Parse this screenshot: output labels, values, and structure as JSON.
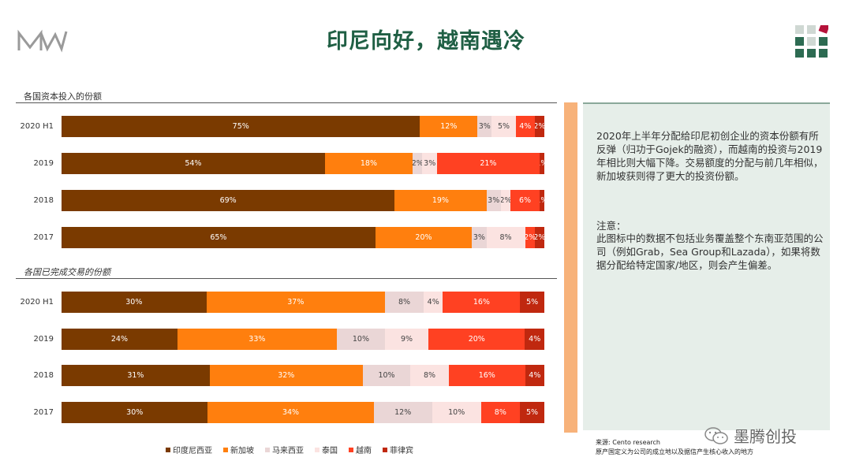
{
  "header": {
    "title": "印尼向好，越南遇冷"
  },
  "colors": {
    "indonesia": "#7a3a00",
    "singapore": "#ff7f0e",
    "malaysia": "#ead6d6",
    "thailand": "#fbe3e1",
    "vietnam": "#ff4122",
    "philippines": "#c0280f",
    "title_green": "#1f5f44"
  },
  "charts": {
    "capital_title": "各国资本投入的份额",
    "deals_title": "各国已完成交易的份额"
  },
  "chart_data": [
    {
      "type": "bar",
      "orientation": "horizontal-stacked",
      "title": "各国资本投入的份额",
      "categories": [
        "2020 H1",
        "2019",
        "2018",
        "2017"
      ],
      "series": [
        {
          "name": "印度尼西亚",
          "values": [
            75,
            54,
            69,
            65
          ],
          "labels": [
            "75%",
            "54%",
            "69%",
            "65%"
          ]
        },
        {
          "name": "新加坡",
          "values": [
            12,
            18,
            19,
            20
          ],
          "labels": [
            "12%",
            "18%",
            "19%",
            "20%"
          ]
        },
        {
          "name": "马来西亚",
          "values": [
            3,
            2,
            3,
            3
          ],
          "labels": [
            "3%",
            "2%",
            "3%",
            "3%"
          ]
        },
        {
          "name": "泰国",
          "values": [
            5,
            3,
            2,
            8
          ],
          "labels": [
            "5%",
            "3%",
            "2%",
            "8%"
          ]
        },
        {
          "name": "越南",
          "values": [
            4,
            21,
            6,
            2
          ],
          "labels": [
            "4%",
            "21%",
            "6%",
            "2%"
          ]
        },
        {
          "name": "菲律宾",
          "values": [
            2,
            1,
            1,
            2
          ],
          "labels": [
            "2%",
            "1%",
            "1%",
            "2%"
          ]
        }
      ]
    },
    {
      "type": "bar",
      "orientation": "horizontal-stacked",
      "title": "各国已完成交易的份额",
      "categories": [
        "2020 H1",
        "2019",
        "2018",
        "2017"
      ],
      "series": [
        {
          "name": "印度尼西亚",
          "values": [
            30,
            24,
            31,
            30
          ],
          "labels": [
            "30%",
            "24%",
            "31%",
            "30%"
          ]
        },
        {
          "name": "新加坡",
          "values": [
            37,
            33,
            32,
            34
          ],
          "labels": [
            "37%",
            "33%",
            "32%",
            "34%"
          ]
        },
        {
          "name": "马来西亚",
          "values": [
            8,
            10,
            10,
            12
          ],
          "labels": [
            "8%",
            "10%",
            "10%",
            "12%"
          ]
        },
        {
          "name": "泰国",
          "values": [
            4,
            9,
            8,
            10
          ],
          "labels": [
            "4%",
            "9%",
            "8%",
            "10%"
          ]
        },
        {
          "name": "越南",
          "values": [
            16,
            20,
            16,
            8
          ],
          "labels": [
            "16%",
            "20%",
            "16%",
            "8%"
          ]
        },
        {
          "name": "菲律宾",
          "values": [
            5,
            4,
            4,
            5
          ],
          "labels": [
            "5%",
            "4%",
            "4%",
            "5%"
          ]
        }
      ]
    }
  ],
  "legend": {
    "items": [
      {
        "label": "印度尼西亚",
        "color": "#7a3a00"
      },
      {
        "label": "新加坡",
        "color": "#ff7f0e"
      },
      {
        "label": "马来西亚",
        "color": "#ead6d6"
      },
      {
        "label": "泰国",
        "color": "#fbe3e1"
      },
      {
        "label": "越南",
        "color": "#ff4122"
      },
      {
        "label": "菲律宾",
        "color": "#c0280f"
      }
    ]
  },
  "panel": {
    "text": "2020年上半年分配给印尼初创企业的资本份额有所反弹（归功于Gojek的融资），而越南的投资与2019年相比则大幅下降。交易额度的分配与前几年相似，新加坡获则得了更大的投资份额。",
    "note_title": "注意：",
    "note": "此图标中的数据不包括业务覆盖整个东南亚范围的公司（例如Grab，Sea Group和Lazada），如果将数据分配给特定国家/地区，则会产生偏差。"
  },
  "source": {
    "line1": "来源: Cento research",
    "line2": "原产国定义为公司的成立地以及据信产生核心收入的地方"
  },
  "watermark": {
    "text": "墨腾创投"
  }
}
